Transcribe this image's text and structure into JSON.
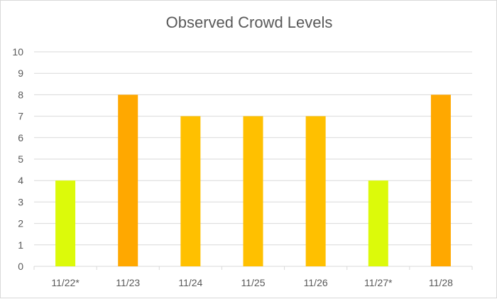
{
  "chart_data": {
    "type": "bar",
    "title": "Observed Crowd Levels",
    "xlabel": "",
    "ylabel": "",
    "categories": [
      "11/22*",
      "11/23",
      "11/24",
      "11/25",
      "11/26",
      "11/27*",
      "11/28"
    ],
    "values": [
      4,
      8,
      7,
      7,
      7,
      4,
      8
    ],
    "bar_colors": [
      "#dcfa0a",
      "#ffa800",
      "#ffc000",
      "#ffc000",
      "#ffc000",
      "#dcfa0a",
      "#ffa800"
    ],
    "ylim": [
      0,
      10
    ],
    "yticks": [
      "0",
      "1",
      "2",
      "3",
      "4",
      "5",
      "6",
      "7",
      "8",
      "9",
      "10"
    ],
    "grid": true,
    "legend": "none",
    "gridline_color": "#d9d9d9",
    "text_color": "#595959"
  }
}
